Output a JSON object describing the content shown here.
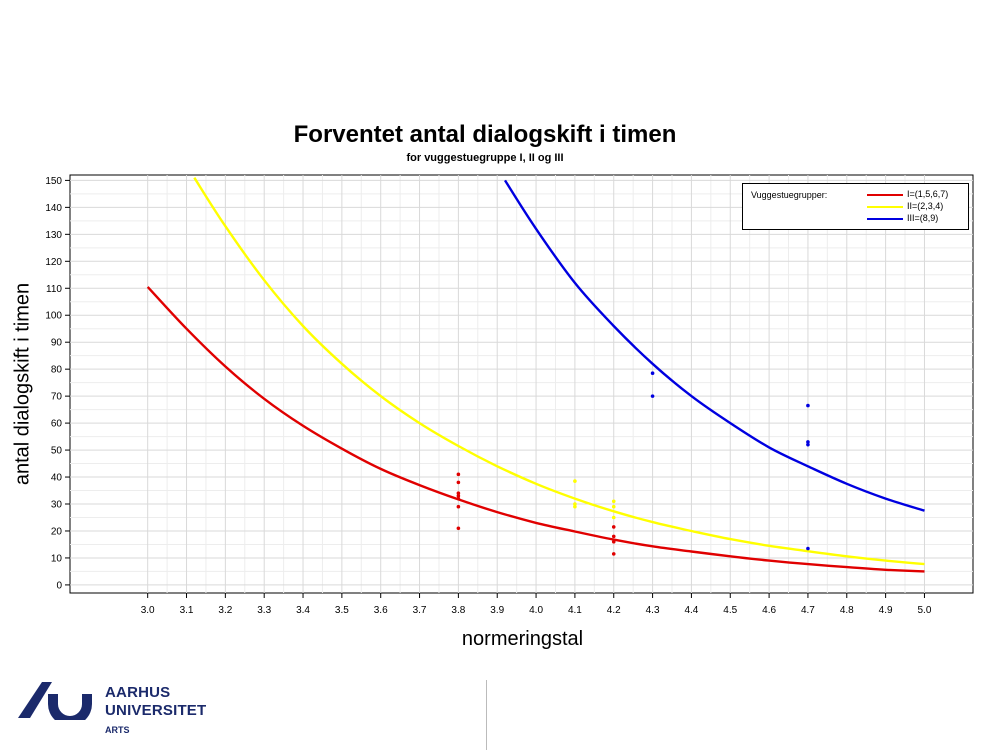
{
  "chart_data": {
    "type": "line",
    "title": "Forventet antal dialogskift i timen",
    "subtitle": "for vuggestuegruppe I, II og III",
    "xlabel": "normeringstal",
    "ylabel": "antal dialogskift i timen",
    "xlim": [
      2.8,
      5.125
    ],
    "ylim": [
      -3,
      152
    ],
    "x_ticks": [
      3.0,
      3.1,
      3.2,
      3.3,
      3.4,
      3.5,
      3.6,
      3.7,
      3.8,
      3.9,
      4.0,
      4.1,
      4.2,
      4.3,
      4.4,
      4.5,
      4.6,
      4.7,
      4.8,
      4.9,
      5.0
    ],
    "x_tick_labels": [
      "3.0",
      "3.1",
      "3.2",
      "3.3",
      "3.4",
      "3.5",
      "3.6",
      "3.7",
      "3.8",
      "3.9",
      "4.0",
      "4.1",
      "4.2",
      "4.3",
      "4.4",
      "4.5",
      "4.6",
      "4.7",
      "4.8",
      "4.9",
      "5.0"
    ],
    "y_ticks": [
      0,
      10,
      20,
      30,
      40,
      50,
      60,
      70,
      80,
      90,
      100,
      110,
      120,
      130,
      140,
      150
    ],
    "y_tick_labels": [
      "0",
      "10",
      "20",
      "30",
      "40",
      "50",
      "60",
      "70",
      "80",
      "90",
      "100",
      "110",
      "120",
      "130",
      "140",
      "150"
    ],
    "grid": true,
    "legend_title": "Vuggestuegrupper:",
    "legend_position": "top-right",
    "series": [
      {
        "name": "I=(1,5,6,7)",
        "color": "#e00000",
        "x": [
          3.0,
          3.1,
          3.2,
          3.3,
          3.4,
          3.5,
          3.6,
          3.7,
          3.8,
          3.9,
          4.0,
          4.1,
          4.2,
          4.3,
          4.4,
          4.5,
          4.6,
          4.7,
          4.8,
          4.9,
          5.0
        ],
        "y": [
          110.5,
          95,
          81,
          69,
          59,
          50.5,
          43,
          37,
          31.7,
          27,
          23,
          19.8,
          16.8,
          14.3,
          12.4,
          10.6,
          9,
          7.7,
          6.6,
          5.6,
          5
        ],
        "points": [
          [
            3.8,
            41
          ],
          [
            3.8,
            38
          ],
          [
            3.8,
            34
          ],
          [
            3.8,
            33
          ],
          [
            3.8,
            32
          ],
          [
            3.8,
            29
          ],
          [
            3.8,
            21
          ],
          [
            4.2,
            21.5
          ],
          [
            4.2,
            18
          ],
          [
            4.2,
            16
          ],
          [
            4.2,
            11.5
          ]
        ]
      },
      {
        "name": "II=(2,3,4)",
        "color": "#ffff00",
        "x": [
          3.12,
          3.2,
          3.3,
          3.4,
          3.5,
          3.6,
          3.7,
          3.8,
          3.9,
          4.0,
          4.1,
          4.2,
          4.3,
          4.4,
          4.5,
          4.6,
          4.7,
          4.8,
          4.9,
          5.0
        ],
        "y": [
          151,
          133,
          113,
          96,
          82,
          70,
          60,
          51.5,
          44,
          37.5,
          32,
          27.3,
          23.3,
          20,
          17,
          14.5,
          12.5,
          10.6,
          9,
          7.7
        ],
        "points": [
          [
            4.1,
            38.5
          ],
          [
            4.1,
            30
          ],
          [
            4.1,
            29
          ],
          [
            4.2,
            31
          ],
          [
            4.2,
            29
          ],
          [
            4.2,
            25
          ]
        ]
      },
      {
        "name": "III=(8,9)",
        "color": "#0000e0",
        "x": [
          3.92,
          4.0,
          4.1,
          4.2,
          4.3,
          4.4,
          4.5,
          4.6,
          4.7,
          4.8,
          4.9,
          5.0
        ],
        "y": [
          150,
          132,
          112,
          96,
          82,
          70,
          60,
          51,
          44,
          37.5,
          32,
          27.5
        ],
        "points": [
          [
            4.3,
            78.5
          ],
          [
            4.3,
            70
          ],
          [
            4.7,
            66.5
          ],
          [
            4.7,
            53
          ],
          [
            4.7,
            52
          ],
          [
            4.7,
            13.5
          ]
        ]
      }
    ]
  },
  "footer": {
    "university_line1": "AARHUS",
    "university_line2": "UNIVERSITET",
    "faculty": "ARTS",
    "logo_color": "#1b2a6b"
  }
}
